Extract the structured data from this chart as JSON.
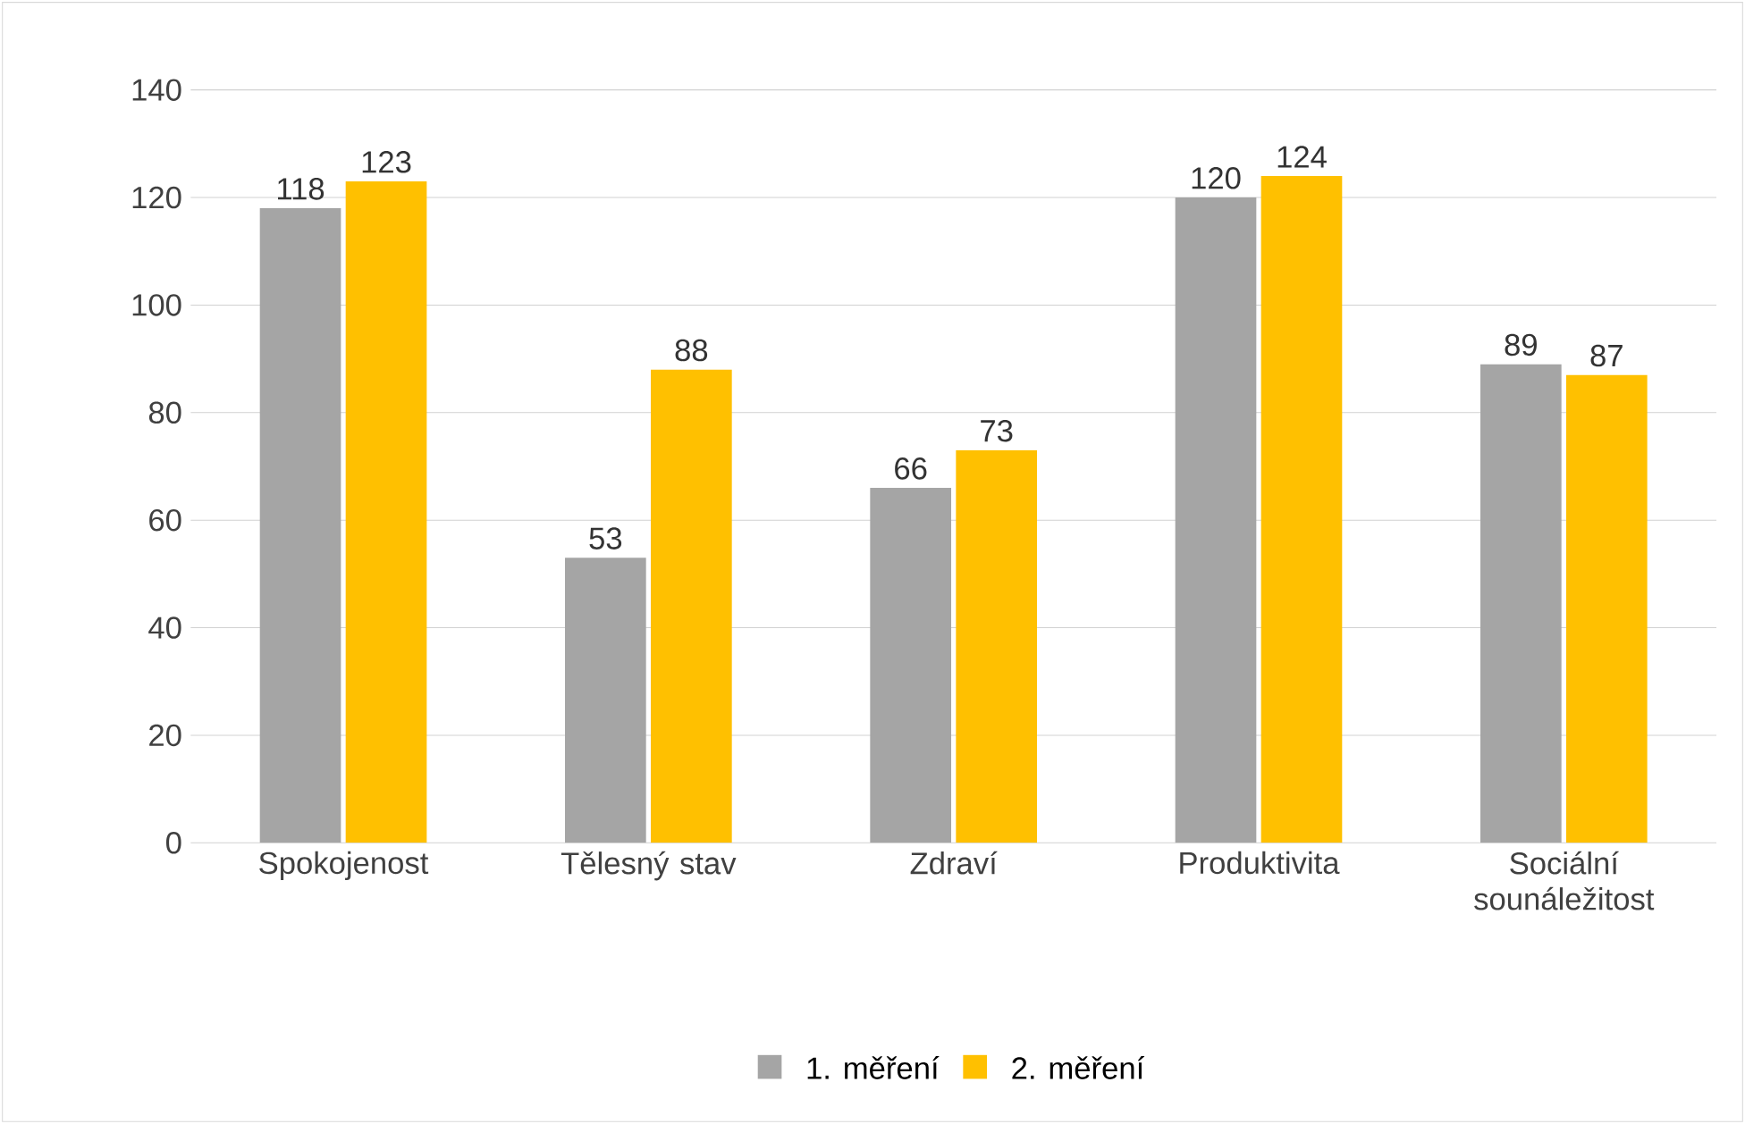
{
  "chart_data": {
    "type": "bar",
    "categories": [
      "Spokojenost",
      "Tělesný stav",
      "Zdraví",
      "Produktivita",
      "Sociální sounáležitost"
    ],
    "series": [
      {
        "name": "1. měření",
        "color": "#a5a5a5",
        "values": [
          118,
          53,
          66,
          120,
          89
        ]
      },
      {
        "name": "2. měření",
        "color": "#ffc000",
        "values": [
          123,
          88,
          73,
          124,
          87
        ]
      }
    ],
    "ylim": [
      0,
      140
    ],
    "yticks": [
      0,
      20,
      40,
      60,
      80,
      100,
      120,
      140
    ],
    "grid": "y",
    "legend": "bottom",
    "data_labels": true
  }
}
